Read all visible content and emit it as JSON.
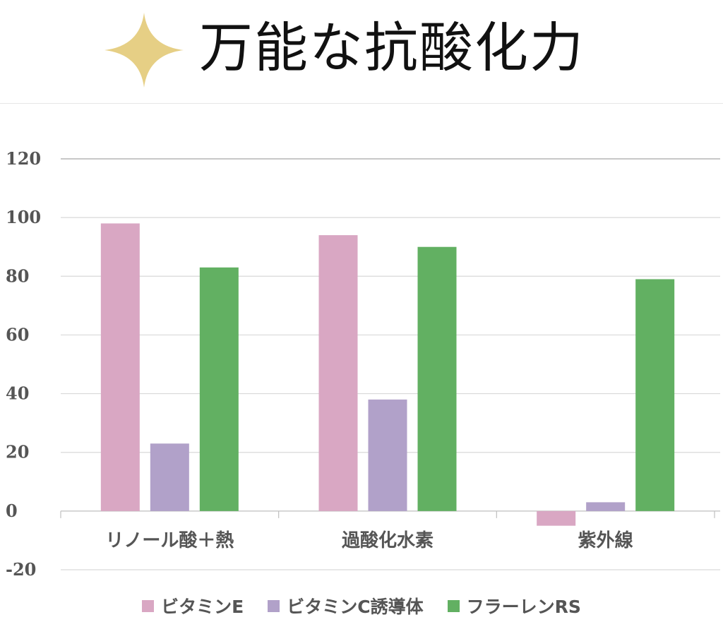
{
  "title": "万能な抗酸化力",
  "colors": {
    "accent": "#e6cf85",
    "grid": "#d9d9d9",
    "axis": "#bfbfbf",
    "text": "#555555"
  },
  "chart_data": {
    "type": "bar",
    "categories": [
      "リノール酸＋熱",
      "過酸化水素",
      "紫外線"
    ],
    "series": [
      {
        "name": "ビタミンE",
        "color": "#d9a7c3",
        "values": [
          98,
          94,
          -5
        ]
      },
      {
        "name": "ビタミンC誘導体",
        "color": "#b1a1c9",
        "values": [
          23,
          38,
          3
        ]
      },
      {
        "name": "フラーレンRS",
        "color": "#62b062",
        "values": [
          83,
          90,
          79
        ]
      }
    ],
    "yticks": [
      120,
      100,
      80,
      60,
      40,
      20,
      0,
      -20
    ],
    "ylim": [
      -20,
      120
    ],
    "grid": true,
    "legend_position": "bottom"
  }
}
